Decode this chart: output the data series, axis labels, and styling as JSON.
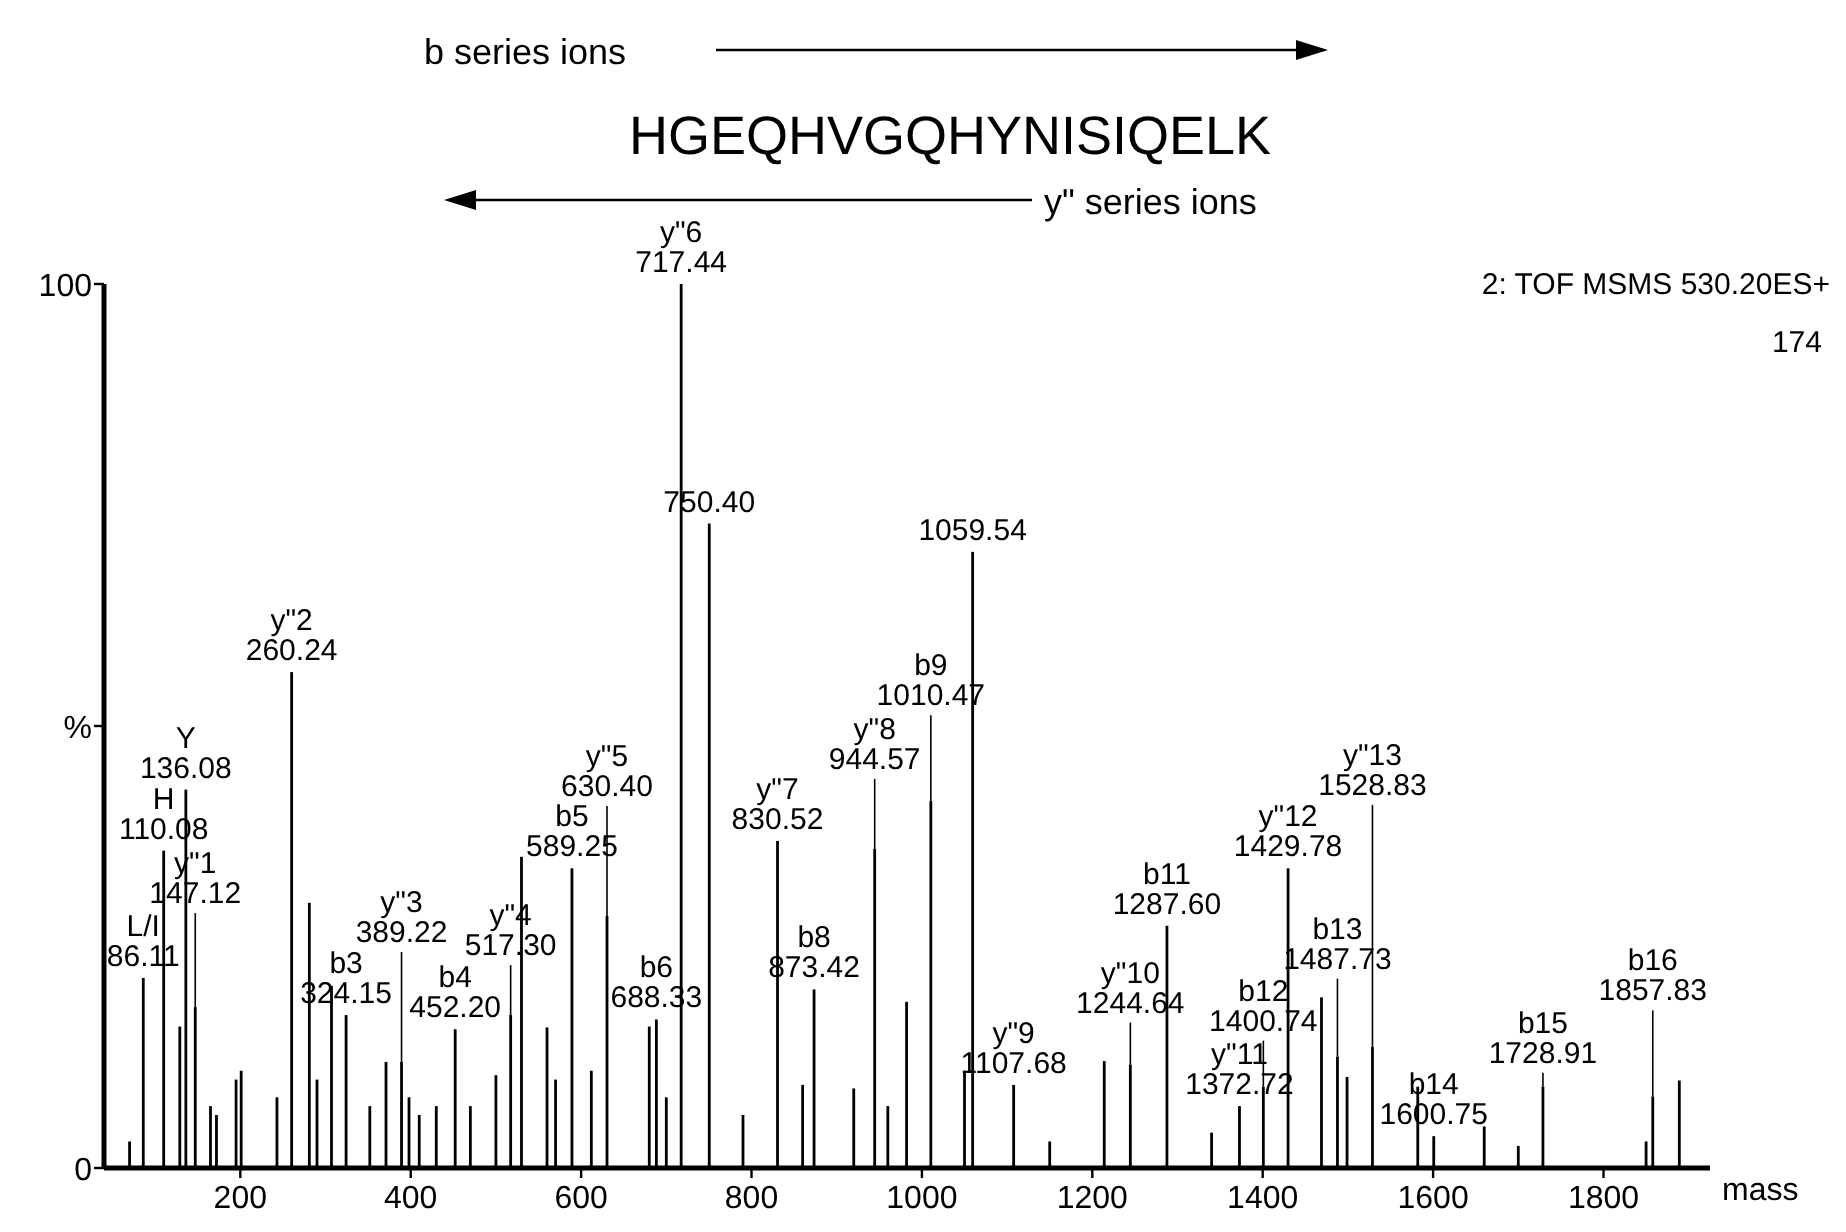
{
  "chart_data": {
    "type": "bar",
    "title": "HGEQHVGQHYNISIQELK",
    "xlabel": "mass",
    "color": "#000000",
    "x": [
      70,
      86.11,
      110.08,
      129,
      136.08,
      147.12,
      165,
      172,
      195,
      201,
      243,
      260.24,
      281,
      290,
      307,
      324.15,
      352,
      371,
      389.22,
      398,
      410,
      430,
      452.2,
      470,
      500,
      517.3,
      530,
      560,
      570,
      589.25,
      612,
      630.4,
      680,
      688.33,
      700,
      717.44,
      750.4,
      790,
      830.52,
      860,
      873.42,
      920,
      944.57,
      960,
      982,
      1010.47,
      1050,
      1059.54,
      1107.68,
      1150,
      1214,
      1244.64,
      1287.6,
      1340,
      1372.72,
      1400.74,
      1429.78,
      1469,
      1487.73,
      1499,
      1528.83,
      1582,
      1600.75,
      1660,
      1700,
      1728.91,
      1850,
      1857.83,
      1889
    ],
    "values": [
      3,
      21.5,
      35.9,
      16,
      42.8,
      18.2,
      7,
      6,
      10,
      11,
      8,
      56.1,
      30,
      10,
      20.6,
      17.3,
      7,
      12,
      12,
      8,
      6,
      7,
      15.7,
      7,
      10.5,
      17.3,
      35.2,
      15.9,
      10,
      33.9,
      11,
      28.5,
      16,
      16.8,
      8,
      100,
      72.9,
      6,
      37,
      9.4,
      20.2,
      9,
      36.1,
      7,
      18.8,
      41.5,
      11,
      69.7,
      9.4,
      3,
      12.1,
      11.7,
      27.4,
      4,
      7,
      9.2,
      33.9,
      19.3,
      12.6,
      10.3,
      13.7,
      9.2,
      3.6,
      4.7,
      2.5,
      9.2,
      3,
      8.1,
      9.9
    ],
    "xlim": [
      40,
      1925
    ],
    "xticks": [
      200,
      400,
      600,
      800,
      1000,
      1200,
      1400,
      1600,
      1800
    ],
    "ylim": [
      0,
      100
    ],
    "yticks": [
      0,
      {
        "value": 50,
        "label": "%"
      },
      100
    ],
    "annotations": [
      "b series ions",
      "y\" series ions",
      "2: TOF MSMS 530.20ES+",
      "174",
      {
        "text": "L/I\n86.11",
        "x": 86.11,
        "y": 21.5
      },
      {
        "text": "H\n110.08",
        "x": 110.08,
        "y": 35.9
      },
      {
        "text": "Y\n136.08",
        "x": 136.08,
        "y": 42.8
      },
      {
        "text": "y\"1\n147.12",
        "x": 147.12,
        "y": 18.2
      },
      {
        "text": "y\"2\n260.24",
        "x": 260.24,
        "y": 56.1
      },
      {
        "text": "b3\n324.15",
        "x": 324.15,
        "y": 17.3
      },
      {
        "text": "y\"3\n389.22",
        "x": 389.22,
        "y": 12
      },
      {
        "text": "b4\n452.20",
        "x": 452.2,
        "y": 15.7
      },
      {
        "text": "y\"4\n517.30",
        "x": 517.3,
        "y": 17.3
      },
      {
        "text": "b5\n589.25",
        "x": 589.25,
        "y": 33.9
      },
      {
        "text": "y\"5\n630.40",
        "x": 630.4,
        "y": 28.5
      },
      {
        "text": "b6\n688.33",
        "x": 688.33,
        "y": 16.8
      },
      {
        "text": "y\"6\n717.44",
        "x": 717.44,
        "y": 100
      },
      {
        "text": "750.40",
        "x": 750.4,
        "y": 72.9
      },
      {
        "text": "y\"7\n830.52",
        "x": 830.52,
        "y": 37
      },
      {
        "text": "b8\n873.42",
        "x": 873.42,
        "y": 20.2
      },
      {
        "text": "y\"8\n944.57",
        "x": 944.57,
        "y": 36.1
      },
      {
        "text": "b9\n1010.47",
        "x": 1010.47,
        "y": 41.5
      },
      {
        "text": "1059.54",
        "x": 1059.54,
        "y": 69.7
      },
      {
        "text": "y\"9\n1107.68",
        "x": 1107.68,
        "y": 9.4
      },
      {
        "text": "y\"10\n1244.64",
        "x": 1244.64,
        "y": 11.7
      },
      {
        "text": "b11\n1287.60",
        "x": 1287.6,
        "y": 27.4
      },
      {
        "text": "y\"11\n1372.72",
        "x": 1372.72,
        "y": 7
      },
      {
        "text": "b12\n1400.74",
        "x": 1400.74,
        "y": 9.2
      },
      {
        "text": "y\"12\n1429.78",
        "x": 1429.78,
        "y": 33.9
      },
      {
        "text": "b13\n1487.73",
        "x": 1487.73,
        "y": 12.6
      },
      {
        "text": "y\"13\n1528.83",
        "x": 1528.83,
        "y": 13.7
      },
      {
        "text": "b14\n1600.75",
        "x": 1600.75,
        "y": 3.6
      },
      {
        "text": "b15\n1728.91",
        "x": 1728.91,
        "y": 9.2
      },
      {
        "text": "b16\n1857.83",
        "x": 1857.83,
        "y": 8.1
      }
    ]
  }
}
